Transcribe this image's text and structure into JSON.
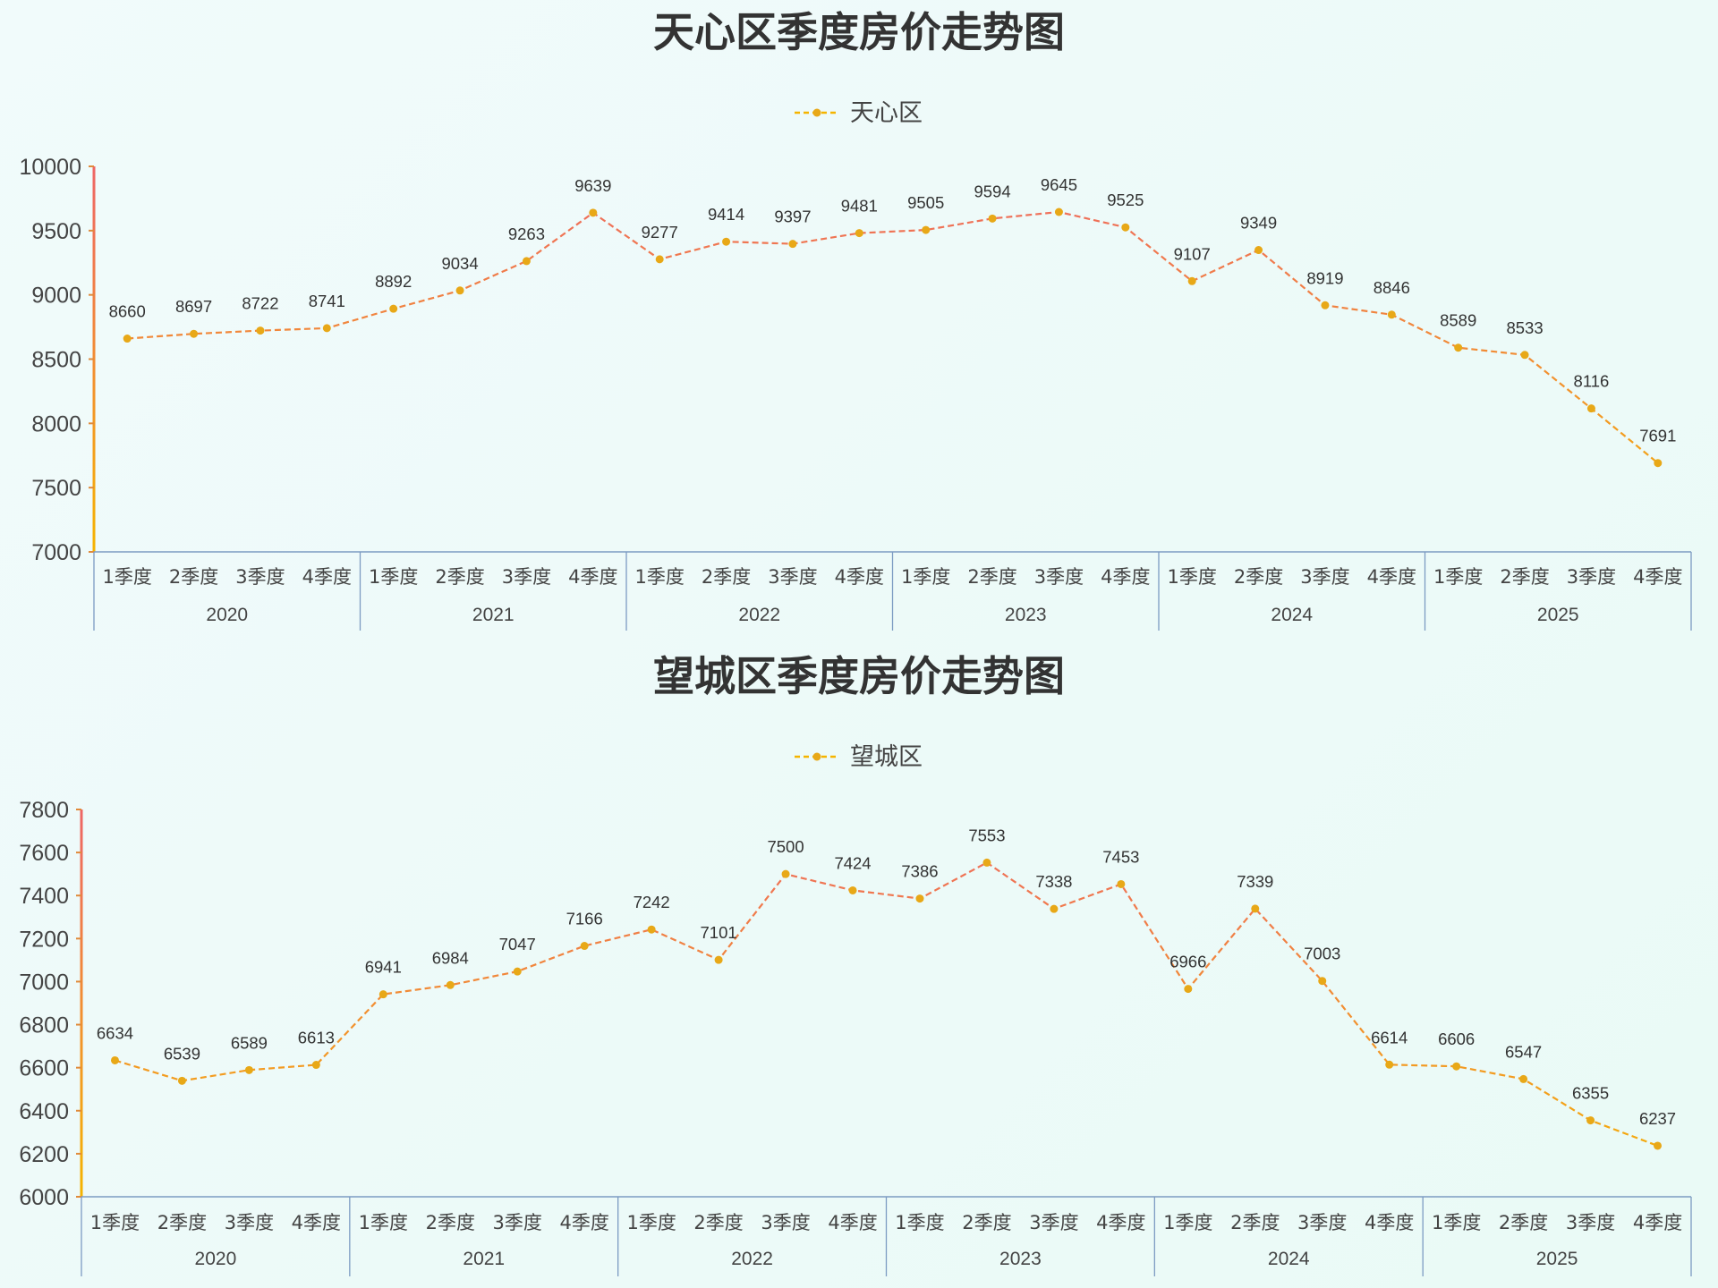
{
  "chart_data": [
    {
      "type": "line",
      "title": "天心区季度房价走势图",
      "legend": "天心区",
      "ylim": [
        7000,
        10000
      ],
      "y_ticks": [
        7000,
        7500,
        8000,
        8500,
        9000,
        9500,
        10000
      ],
      "years": [
        "2020",
        "2021",
        "2022",
        "2023",
        "2024",
        "2025"
      ],
      "quarters": [
        "1季度",
        "2季度",
        "3季度",
        "4季度"
      ],
      "series": [
        {
          "name": "天心区",
          "values": [
            8660,
            8697,
            8722,
            8741,
            8892,
            9034,
            9263,
            9639,
            9277,
            9414,
            9397,
            9481,
            9505,
            9594,
            9645,
            9525,
            9107,
            9349,
            8919,
            8846,
            8589,
            8533,
            8116,
            7691
          ]
        }
      ],
      "line_style": "dashed",
      "gradient_colors": [
        "#ee6666",
        "#f5b400"
      ],
      "marker_color": "#e8a817",
      "grid": false,
      "legend_position": "top-center"
    },
    {
      "type": "line",
      "title": "望城区季度房价走势图",
      "legend": "望城区",
      "ylim": [
        6000,
        7800
      ],
      "y_ticks": [
        6000,
        6200,
        6400,
        6600,
        6800,
        7000,
        7200,
        7400,
        7600,
        7800
      ],
      "years": [
        "2020",
        "2021",
        "2022",
        "2023",
        "2024",
        "2025"
      ],
      "quarters": [
        "1季度",
        "2季度",
        "3季度",
        "4季度"
      ],
      "series": [
        {
          "name": "望城区",
          "values": [
            6634,
            6539,
            6589,
            6613,
            6941,
            6984,
            7047,
            7166,
            7242,
            7101,
            7500,
            7424,
            7386,
            7553,
            7338,
            7453,
            6966,
            7339,
            7003,
            6614,
            6606,
            6547,
            6355,
            6237
          ]
        }
      ],
      "line_style": "dashed",
      "gradient_colors": [
        "#ee6666",
        "#f5b400"
      ],
      "marker_color": "#e8a817",
      "grid": false,
      "legend_position": "top-center"
    }
  ]
}
